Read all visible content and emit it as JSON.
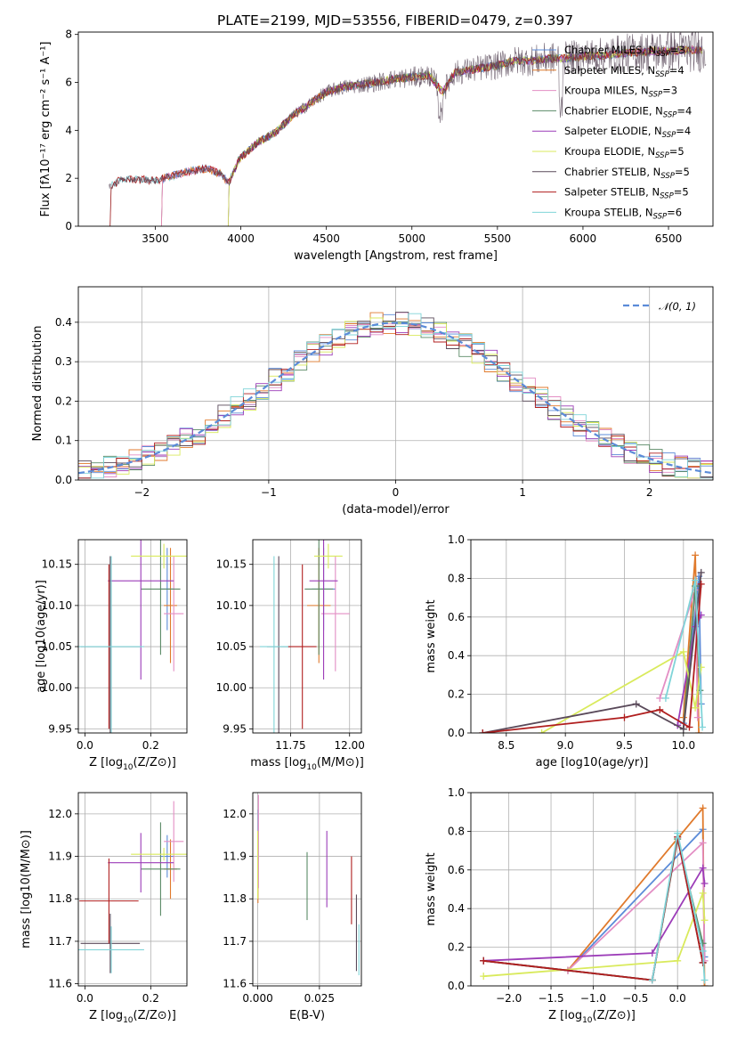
{
  "title": "PLATE=2199, MJD=53556, FIBERID=0479, z=0.397",
  "colors": [
    "#5b8bd8",
    "#e07a2c",
    "#e38ec4",
    "#5a8a66",
    "#9c3cb8",
    "#d9ea5c",
    "#5a4a5a",
    "#b01e1e",
    "#7fd4d8"
  ],
  "chart_data": [
    {
      "id": "spectrum",
      "type": "line",
      "xlabel": "wavelength [Angstrom, rest frame]",
      "ylabel": "Flux [fλ10⁻¹⁷ erg cm⁻² s⁻¹ A⁻¹]",
      "xlim": [
        3050,
        6760
      ],
      "ylim": [
        0,
        8.1
      ],
      "xticks": [
        3500,
        4000,
        4500,
        5000,
        5500,
        6000,
        6500
      ],
      "yticks": [
        0,
        2,
        4,
        6,
        8
      ],
      "continuum": [
        [
          3230,
          1.6
        ],
        [
          3300,
          1.95
        ],
        [
          3400,
          1.95
        ],
        [
          3500,
          1.9
        ],
        [
          3600,
          2.1
        ],
        [
          3700,
          2.3
        ],
        [
          3800,
          2.4
        ],
        [
          3880,
          2.2
        ],
        [
          3930,
          1.8
        ],
        [
          3990,
          2.8
        ],
        [
          4100,
          3.5
        ],
        [
          4200,
          3.9
        ],
        [
          4300,
          4.6
        ],
        [
          4400,
          5.1
        ],
        [
          4500,
          5.6
        ],
        [
          4600,
          5.8
        ],
        [
          4700,
          5.9
        ],
        [
          4800,
          6.0
        ],
        [
          4900,
          6.15
        ],
        [
          5000,
          6.2
        ],
        [
          5100,
          6.3
        ],
        [
          5180,
          5.6
        ],
        [
          5250,
          6.4
        ],
        [
          5400,
          6.6
        ],
        [
          5500,
          6.7
        ],
        [
          5600,
          6.9
        ],
        [
          5700,
          6.9
        ],
        [
          5800,
          7.0
        ],
        [
          5900,
          7.0
        ],
        [
          6000,
          7.1
        ],
        [
          6100,
          7.1
        ],
        [
          6200,
          7.2
        ],
        [
          6300,
          7.25
        ],
        [
          6400,
          7.3
        ],
        [
          6500,
          7.3
        ],
        [
          6600,
          7.35
        ],
        [
          6700,
          7.35
        ]
      ],
      "series": [
        {
          "name": "Chabrier MILES, N$_{SSP}$=3",
          "label_main": "Chabrier MILES, N",
          "label_sub": "SSP",
          "label_end": "=3",
          "start": 3530
        },
        {
          "name": "Salpeter MILES, N$_{SSP}$=4",
          "label_main": "Salpeter MILES, N",
          "label_sub": "SSP",
          "label_end": "=4",
          "start": 3530
        },
        {
          "name": "Kroupa MILES, N$_{SSP}$=3",
          "label_main": "Kroupa MILES, N",
          "label_sub": "SSP",
          "label_end": "=3",
          "start": 3530
        },
        {
          "name": "Chabrier ELODIE, N$_{SSP}$=4",
          "label_main": "Chabrier ELODIE, N",
          "label_sub": "SSP",
          "label_end": "=4",
          "start": 3920
        },
        {
          "name": "Salpeter ELODIE, N$_{SSP}$=4",
          "label_main": "Salpeter ELODIE, N",
          "label_sub": "SSP",
          "label_end": "=4",
          "start": 3920
        },
        {
          "name": "Kroupa ELODIE, N$_{SSP}$=5",
          "label_main": "Kroupa ELODIE, N",
          "label_sub": "SSP",
          "label_end": "=5",
          "start": 3920
        },
        {
          "name": "Chabrier STELIB, N$_{SSP}$=5",
          "label_main": "Chabrier STELIB, N",
          "label_sub": "SSP",
          "label_end": "=5",
          "start": 3230
        },
        {
          "name": "Salpeter STELIB, N$_{SSP}$=5",
          "label_main": "Salpeter STELIB, N",
          "label_sub": "SSP",
          "label_end": "=5",
          "start": 3230
        },
        {
          "name": "Kroupa STELIB, N$_{SSP}$=6",
          "label_main": "Kroupa STELIB, N",
          "label_sub": "SSP",
          "label_end": "=6",
          "start": 3230
        }
      ]
    },
    {
      "id": "residuals",
      "type": "step-histogram",
      "xlabel": "(data-model)/error",
      "ylabel": "Normed distribution",
      "xlim": [
        -2.5,
        2.5
      ],
      "ylim": [
        0,
        0.49
      ],
      "xticks": [
        -2,
        -1,
        0,
        1,
        2
      ],
      "yticks": [
        0.0,
        0.1,
        0.2,
        0.3,
        0.4
      ],
      "bin_width": 0.1,
      "curve_label": "𝒩(0, 1)",
      "gaussian": {
        "mu": 0,
        "sigma": 1
      }
    },
    {
      "id": "age-vs-Z",
      "type": "errorbar",
      "xlabel_main": "Z [log",
      "xlabel_tail": "(Z/Z⊙)]",
      "ylabel": "age  [log10(age/yr)]",
      "xlim": [
        -0.02,
        0.31
      ],
      "ylim": [
        9.945,
        10.18
      ],
      "xticks": [
        0.0,
        0.2
      ],
      "yticks": [
        9.95,
        10.0,
        10.05,
        10.1,
        10.15
      ],
      "points": [
        {
          "x": 0.25,
          "xerr": 0.02,
          "y": 10.12,
          "yerr": 0.05
        },
        {
          "x": 0.26,
          "xerr": 0.02,
          "y": 10.1,
          "yerr": 0.07
        },
        {
          "x": 0.27,
          "xerr": 0.03,
          "y": 10.09,
          "yerr": 0.07
        },
        {
          "x": 0.23,
          "xerr": 0.06,
          "y": 10.12,
          "yerr": 0.08
        },
        {
          "x": 0.17,
          "xerr": 0.1,
          "y": 10.13,
          "yerr": 0.12
        },
        {
          "x": 0.24,
          "xerr": 0.1,
          "y": 10.16,
          "yerr": 0.015
        },
        {
          "x": 0.077,
          "xerr": 0.09,
          "y": 10.05,
          "yerr": 0.11
        },
        {
          "x": 0.073,
          "xerr": 0.0,
          "y": 10.05,
          "yerr": 0.1
        },
        {
          "x": 0.08,
          "xerr": 0.1,
          "y": 10.05,
          "yerr": 0.11
        }
      ]
    },
    {
      "id": "age-vs-mass",
      "type": "errorbar",
      "xlabel_main": "mass [log",
      "xlabel_tail": "(M/M⊙)]",
      "xlim": [
        11.59,
        12.05
      ],
      "ylim": [
        9.945,
        10.18
      ],
      "xticks": [
        11.75,
        12.0
      ],
      "yticks": [
        9.95,
        10.0,
        10.05,
        10.1,
        10.15
      ],
      "points": [
        {
          "x": 11.89,
          "xerr": 0.05,
          "y": 10.12,
          "yerr": 0.05
        },
        {
          "x": 11.87,
          "xerr": 0.05,
          "y": 10.1,
          "yerr": 0.07
        },
        {
          "x": 11.94,
          "xerr": 0.06,
          "y": 10.09,
          "yerr": 0.07
        },
        {
          "x": 11.87,
          "xerr": 0.06,
          "y": 10.12,
          "yerr": 0.08
        },
        {
          "x": 11.89,
          "xerr": 0.06,
          "y": 10.13,
          "yerr": 0.12
        },
        {
          "x": 11.91,
          "xerr": 0.06,
          "y": 10.16,
          "yerr": 0.015
        },
        {
          "x": 11.7,
          "xerr": 0.05,
          "y": 10.05,
          "yerr": 0.11
        },
        {
          "x": 11.8,
          "xerr": 0.06,
          "y": 10.05,
          "yerr": 0.1
        },
        {
          "x": 11.68,
          "xerr": 0.06,
          "y": 10.05,
          "yerr": 0.11
        }
      ]
    },
    {
      "id": "weight-vs-age",
      "type": "line",
      "xlabel": "age  [log10(age/yr)]",
      "ylabel": "mass weight",
      "xlim": [
        8.2,
        10.25
      ],
      "ylim": [
        0,
        1.0
      ],
      "xticks": [
        8.5,
        9.0,
        9.5,
        10.0
      ],
      "yticks": [
        0.0,
        0.2,
        0.4,
        0.6,
        0.8,
        1.0
      ],
      "series": [
        {
          "x": [
            10.0,
            10.13,
            10.15
          ],
          "y": [
            0.05,
            0.81,
            0.15
          ]
        },
        {
          "x": [
            10.0,
            10.1,
            10.13
          ],
          "y": [
            0.08,
            0.92,
            0.0
          ]
        },
        {
          "x": [
            9.8,
            10.1,
            10.12
          ],
          "y": [
            0.18,
            0.74,
            0.08
          ]
        },
        {
          "x": [
            10.0,
            10.1,
            10.14
          ],
          "y": [
            0.02,
            0.76,
            0.22
          ]
        },
        {
          "x": [
            9.95,
            10.1,
            10.15
          ],
          "y": [
            0.04,
            0.55,
            0.61
          ]
        },
        {
          "x": [
            8.8,
            10.0,
            10.1,
            10.15
          ],
          "y": [
            0.0,
            0.42,
            0.13,
            0.34
          ]
        },
        {
          "x": [
            8.3,
            9.6,
            10.0,
            10.15
          ],
          "y": [
            0.0,
            0.15,
            0.02,
            0.83
          ]
        },
        {
          "x": [
            8.3,
            9.5,
            9.8,
            10.05,
            10.15
          ],
          "y": [
            0.0,
            0.08,
            0.12,
            0.03,
            0.77
          ]
        },
        {
          "x": [
            9.85,
            10.1,
            10.16
          ],
          "y": [
            0.18,
            0.79,
            0.03
          ]
        }
      ]
    },
    {
      "id": "mass-vs-Z",
      "type": "errorbar",
      "xlabel_main": "Z [log",
      "xlabel_tail": "(Z/Z⊙)]",
      "ylabel": "mass [log10(M/M⊙)]",
      "xlim": [
        -0.02,
        0.31
      ],
      "ylim": [
        11.595,
        12.05
      ],
      "xticks": [
        0.0,
        0.2
      ],
      "yticks": [
        11.6,
        11.7,
        11.8,
        11.9,
        12.0
      ],
      "points": [
        {
          "x": 0.25,
          "xerr": 0.02,
          "y": 11.9,
          "yerr": 0.05
        },
        {
          "x": 0.26,
          "xerr": 0.02,
          "y": 11.87,
          "yerr": 0.07
        },
        {
          "x": 0.27,
          "xerr": 0.03,
          "y": 11.935,
          "yerr": 0.095
        },
        {
          "x": 0.23,
          "xerr": 0.06,
          "y": 11.87,
          "yerr": 0.11
        },
        {
          "x": 0.17,
          "xerr": 0.1,
          "y": 11.885,
          "yerr": 0.07
        },
        {
          "x": 0.24,
          "xerr": 0.1,
          "y": 11.905,
          "yerr": 0.015
        },
        {
          "x": 0.077,
          "xerr": 0.09,
          "y": 11.695,
          "yerr": 0.07
        },
        {
          "x": 0.073,
          "xerr": 0.09,
          "y": 11.795,
          "yerr": 0.1
        },
        {
          "x": 0.08,
          "xerr": 0.1,
          "y": 11.68,
          "yerr": 0.055
        }
      ]
    },
    {
      "id": "mass-vs-ebv",
      "type": "errorbar",
      "xlabel": "E(B-V)",
      "xlim": [
        -0.002,
        0.042
      ],
      "ylim": [
        11.595,
        12.05
      ],
      "xticks": [
        0.0,
        0.025
      ],
      "yticks": [
        11.6,
        11.7,
        11.8,
        11.9,
        12.0
      ],
      "points": [
        {
          "x": 0.0002,
          "xerr": 0,
          "y": 11.95,
          "yerr": 0.06
        },
        {
          "x": 0.0001,
          "xerr": 0,
          "y": 11.87,
          "yerr": 0.08
        },
        {
          "x": 0.0003,
          "xerr": 0,
          "y": 11.935,
          "yerr": 0.11
        },
        {
          "x": 0.02,
          "xerr": 0,
          "y": 11.83,
          "yerr": 0.08
        },
        {
          "x": 0.028,
          "xerr": 0,
          "y": 11.87,
          "yerr": 0.09
        },
        {
          "x": 0.0,
          "xerr": 0,
          "y": 11.88,
          "yerr": 0.08
        },
        {
          "x": 0.04,
          "xerr": 0,
          "y": 11.72,
          "yerr": 0.09
        },
        {
          "x": 0.038,
          "xerr": 0,
          "y": 11.82,
          "yerr": 0.08
        },
        {
          "x": 0.041,
          "xerr": 0,
          "y": 11.68,
          "yerr": 0.06
        }
      ]
    },
    {
      "id": "weight-vs-Z",
      "type": "line",
      "xlabel_main": "Z [log",
      "xlabel_tail": "(Z/Z⊙)]",
      "ylabel": "mass weight",
      "xlim": [
        -2.45,
        0.42
      ],
      "ylim": [
        0,
        1.0
      ],
      "xticks": [
        -2.0,
        -1.5,
        -1.0,
        -0.5,
        0.0
      ],
      "yticks": [
        0.0,
        0.2,
        0.4,
        0.6,
        0.8,
        1.0
      ],
      "series": [
        {
          "x": [
            -1.3,
            0.3,
            0.32
          ],
          "y": [
            0.08,
            0.81,
            0.15
          ]
        },
        {
          "x": [
            -1.3,
            0.3,
            0.32
          ],
          "y": [
            0.08,
            0.92,
            0.0
          ]
        },
        {
          "x": [
            -1.3,
            0.3,
            0.32
          ],
          "y": [
            0.08,
            0.74,
            0.13
          ]
        },
        {
          "x": [
            -2.3,
            -0.3,
            0.0,
            0.3
          ],
          "y": [
            0.13,
            0.03,
            0.76,
            0.22
          ]
        },
        {
          "x": [
            -2.3,
            -0.3,
            0.3,
            0.32
          ],
          "y": [
            0.13,
            0.17,
            0.61,
            0.53
          ]
        },
        {
          "x": [
            -2.3,
            0.0,
            0.3,
            0.32
          ],
          "y": [
            0.05,
            0.13,
            0.48,
            0.34
          ]
        },
        {
          "x": [
            -2.3,
            -0.3,
            0.0,
            0.3
          ],
          "y": [
            0.13,
            0.03,
            0.77,
            0.12
          ]
        },
        {
          "x": [
            -2.3,
            -0.3,
            0.0,
            0.3
          ],
          "y": [
            0.13,
            0.03,
            0.77,
            0.12
          ]
        },
        {
          "x": [
            -0.3,
            0.0,
            0.3,
            0.32
          ],
          "y": [
            0.03,
            0.79,
            0.18,
            0.03
          ]
        }
      ]
    }
  ]
}
